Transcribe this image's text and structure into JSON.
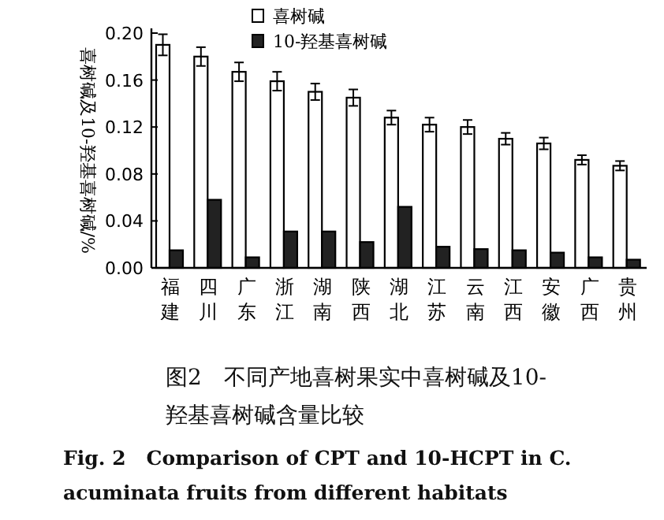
{
  "chart_data": {
    "type": "bar",
    "ylabel": "喜树碱及10-羟基喜树碱/%",
    "categories": [
      "福建",
      "四川",
      "广东",
      "浙江",
      "湖南",
      "陕西",
      "湖北",
      "江苏",
      "云南",
      "江西",
      "安徽",
      "广西",
      "贵州"
    ],
    "series": [
      {
        "name": "喜树碱",
        "color": "#ffffff",
        "values": [
          0.19,
          0.18,
          0.167,
          0.159,
          0.15,
          0.145,
          0.128,
          0.122,
          0.12,
          0.11,
          0.106,
          0.092,
          0.087
        ],
        "errors": [
          0.009,
          0.008,
          0.008,
          0.008,
          0.007,
          0.007,
          0.006,
          0.006,
          0.006,
          0.005,
          0.005,
          0.004,
          0.004
        ]
      },
      {
        "name": "10-羟基喜树碱",
        "color": "#222222",
        "values": [
          0.015,
          0.058,
          0.009,
          0.031,
          0.031,
          0.022,
          0.052,
          0.018,
          0.016,
          0.015,
          0.013,
          0.009,
          0.007
        ]
      }
    ],
    "ylim": [
      0,
      0.2
    ],
    "yticks": [
      {
        "value": 0,
        "label": "0.00"
      },
      {
        "value": 0.04,
        "label": "0.04"
      },
      {
        "value": 0.08,
        "label": "0.08"
      },
      {
        "value": 0.12,
        "label": "0.12"
      },
      {
        "value": 0.16,
        "label": "0.16"
      },
      {
        "value": 0.2,
        "label": "0.20"
      }
    ],
    "legend": "top",
    "annotations": [
      "图2　不同产地喜树果实中喜树碱及10-羟基喜树碱含量比较",
      "Fig. 2　Comparison of CPT and 10-HCPT in C. acuminata fruits from different habitats"
    ]
  }
}
